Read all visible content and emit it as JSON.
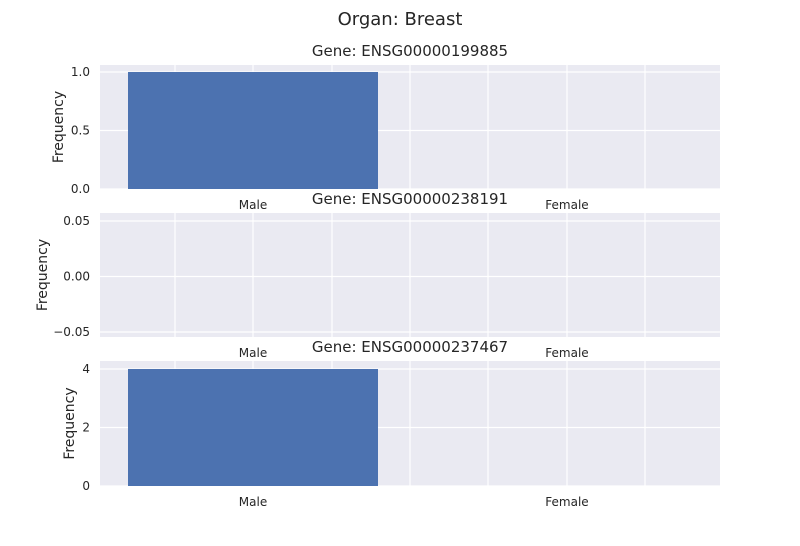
{
  "figure": {
    "suptitle": "Organ: Breast"
  },
  "chart_data": [
    {
      "type": "bar",
      "title": "Gene: ENSG00000199885",
      "xlabel": "",
      "ylabel": "Frequency",
      "categories": [
        "Male",
        "Female"
      ],
      "values": [
        1,
        0
      ],
      "ylim": [
        0,
        1.0
      ],
      "yticks": [
        0.0,
        0.5,
        1.0
      ],
      "ytick_labels": [
        "0.0",
        "0.5",
        "1.0"
      ],
      "grid": true,
      "color": "#4c72b0",
      "background": "#eaeaf2"
    },
    {
      "type": "bar",
      "title": "Gene: ENSG00000238191",
      "xlabel": "",
      "ylabel": "Frequency",
      "categories": [
        "Male",
        "Female"
      ],
      "values": [
        0,
        0
      ],
      "ylim": [
        -0.055,
        0.055
      ],
      "yticks": [
        -0.05,
        0.0,
        0.05
      ],
      "ytick_labels": [
        "−0.05",
        "0.00",
        "0.05"
      ],
      "grid": true,
      "color": "#4c72b0",
      "background": "#eaeaf2"
    },
    {
      "type": "bar",
      "title": "Gene: ENSG00000237467",
      "xlabel": "",
      "ylabel": "Frequency",
      "categories": [
        "Male",
        "Female"
      ],
      "values": [
        4,
        0
      ],
      "ylim": [
        0,
        4
      ],
      "yticks": [
        0,
        2,
        4
      ],
      "ytick_labels": [
        "0",
        "2",
        "4"
      ],
      "grid": true,
      "color": "#4c72b0",
      "background": "#eaeaf2"
    }
  ]
}
